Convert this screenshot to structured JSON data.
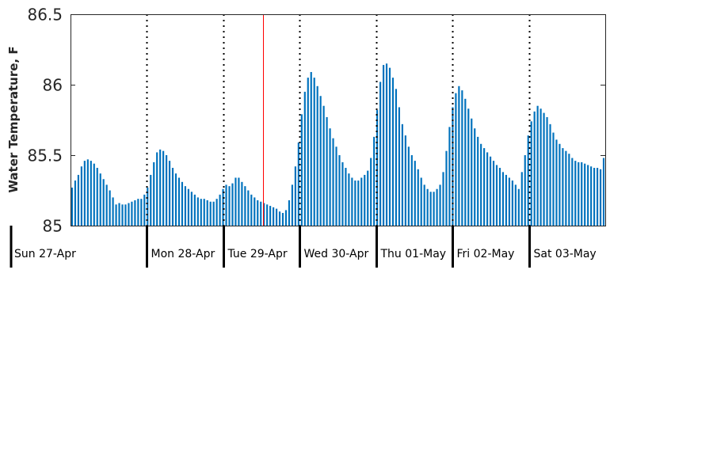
{
  "chart_data": {
    "type": "bar",
    "ylabel": "Water Temperature, F",
    "ylim": [
      85,
      86.5
    ],
    "yticks": [
      "85",
      "85.5",
      "86",
      "86.5"
    ],
    "day_labels": [
      "Sun 27-Apr",
      "Mon 28-Apr",
      "Tue 29-Apr",
      "Wed 30-Apr",
      "Thu 01-May",
      "Fri 02-May",
      "Sat 03-May"
    ],
    "x_start": "2025-04-27T00:00",
    "x_end": "2025-05-04T00:00",
    "midnight_lines": [
      "2025-04-28T00:00",
      "2025-04-29T00:00",
      "2025-04-30T00:00",
      "2025-05-01T00:00",
      "2025-05-02T00:00",
      "2025-05-03T00:00"
    ],
    "current_time": "2025-04-29T12:30",
    "grid": false,
    "bar_color": "#0072bd",
    "current_line_color": "#ff0000",
    "values": [
      85.27,
      85.32,
      85.36,
      85.42,
      85.46,
      85.47,
      85.46,
      85.44,
      85.41,
      85.37,
      85.33,
      85.29,
      85.25,
      85.2,
      85.15,
      85.16,
      85.15,
      85.15,
      85.16,
      85.17,
      85.18,
      85.19,
      85.19,
      85.22,
      85.27,
      85.36,
      85.45,
      85.52,
      85.54,
      85.53,
      85.5,
      85.46,
      85.41,
      85.37,
      85.34,
      85.31,
      85.28,
      85.26,
      85.24,
      85.22,
      85.2,
      85.19,
      85.19,
      85.18,
      85.17,
      85.17,
      85.19,
      85.22,
      85.26,
      85.29,
      85.28,
      85.3,
      85.34,
      85.34,
      85.31,
      85.28,
      85.25,
      85.22,
      85.2,
      85.18,
      85.17,
      85.16,
      85.15,
      85.14,
      85.13,
      85.12,
      85.1,
      85.09,
      85.11,
      85.18,
      85.29,
      85.42,
      85.59,
      85.79,
      85.95,
      86.05,
      86.09,
      86.05,
      85.99,
      85.92,
      85.85,
      85.77,
      85.69,
      85.62,
      85.56,
      85.5,
      85.45,
      85.41,
      85.37,
      85.34,
      85.32,
      85.32,
      85.34,
      85.36,
      85.39,
      85.48,
      85.63,
      85.82,
      86.02,
      86.14,
      86.15,
      86.12,
      86.05,
      85.97,
      85.84,
      85.72,
      85.64,
      85.56,
      85.5,
      85.46,
      85.4,
      85.34,
      85.29,
      85.26,
      85.24,
      85.24,
      85.26,
      85.29,
      85.38,
      85.53,
      85.7,
      85.84,
      85.94,
      85.99,
      85.96,
      85.9,
      85.83,
      85.76,
      85.69,
      85.63,
      85.58,
      85.55,
      85.52,
      85.49,
      85.46,
      85.43,
      85.41,
      85.38,
      85.36,
      85.34,
      85.32,
      85.29,
      85.26,
      85.38,
      85.5,
      85.64,
      85.74,
      85.81,
      85.85,
      85.83,
      85.8,
      85.77,
      85.72,
      85.66,
      85.61,
      85.58,
      85.55,
      85.53,
      85.51,
      85.48,
      85.46,
      85.45,
      85.45,
      85.44,
      85.43,
      85.42,
      85.41,
      85.41,
      85.4,
      85.48
    ]
  }
}
